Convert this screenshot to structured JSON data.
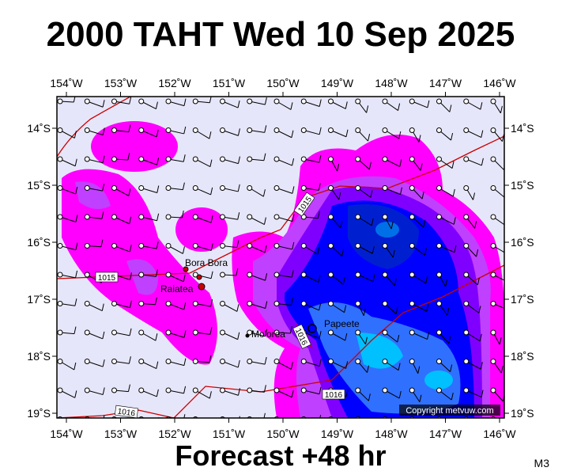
{
  "header": {
    "title": "2000 TAHT Wed 10 Sep 2025",
    "footer": "Forecast +48 hr",
    "code": "M3"
  },
  "map": {
    "lon_ticks": [
      "154˚W",
      "153˚W",
      "152˚W",
      "151˚W",
      "150˚W",
      "149˚W",
      "148˚W",
      "147˚W",
      "146˚W"
    ],
    "lat_ticks": [
      "14˚S",
      "15˚S",
      "16˚S",
      "17˚S",
      "18˚S",
      "19˚S"
    ],
    "places": [
      "Bora Bora",
      "Raiatea",
      "Mo'orea",
      "Papeete"
    ],
    "isobar_labels": [
      "1015",
      "1015",
      "1016",
      "1016",
      "1016"
    ],
    "copyright": "Copyright metvuw.com"
  }
}
